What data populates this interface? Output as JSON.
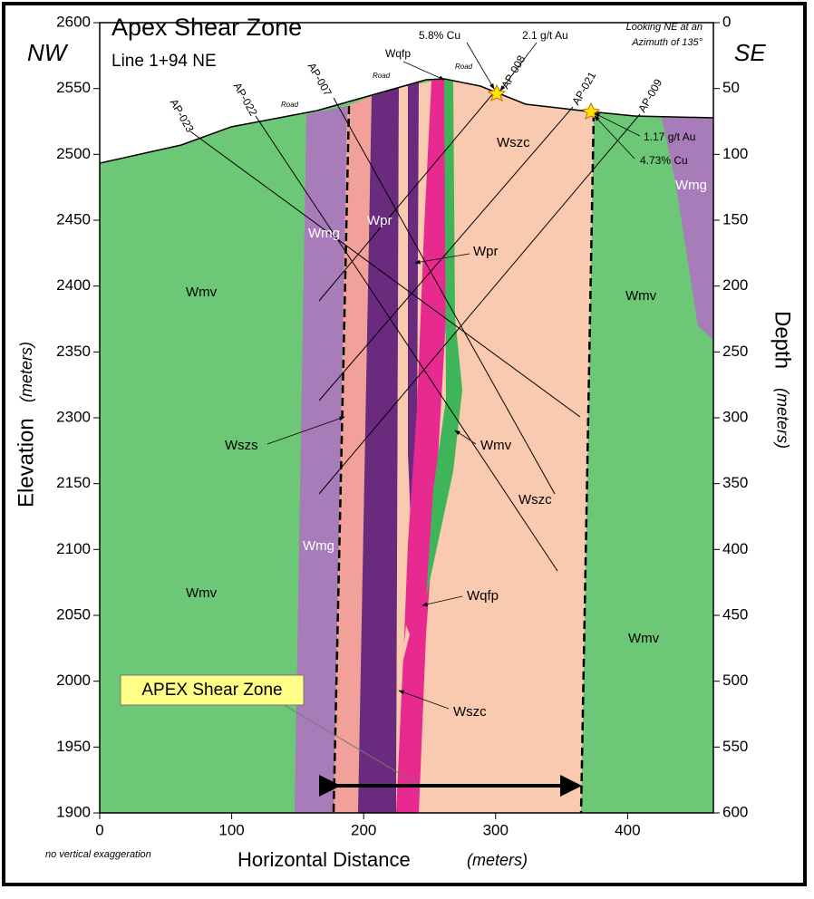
{
  "title": "Apex Shear Zone",
  "subtitle": "Line 1+94 NE",
  "left_direction": "NW",
  "right_direction": "SE",
  "view_note": [
    "Looking NE at an",
    "Azimuth of 135°"
  ],
  "x_axis": {
    "label": "Horizontal Distance",
    "unit": "(meters)",
    "lim": [
      0,
      465
    ],
    "ticks": [
      0,
      100,
      200,
      300,
      400
    ]
  },
  "elevation_axis": {
    "label": "Elevation",
    "unit": "(meters)",
    "tick_labels": [
      2600,
      2550,
      2500,
      2450,
      2400,
      2350,
      2300,
      2150,
      2100,
      2050,
      2000,
      1950,
      1900
    ]
  },
  "depth_axis": {
    "label": "Depth",
    "unit": "(meters)",
    "lim": [
      0,
      600
    ],
    "ticks": [
      0,
      50,
      100,
      150,
      200,
      250,
      300,
      350,
      400,
      450,
      500,
      550,
      600
    ]
  },
  "unit_labels": [
    "Wmv",
    "Wmg",
    "Wpr",
    "Wszc",
    "Wmg",
    "Wmv",
    "Wszs",
    "Wmg",
    "Wmv",
    "Wmv",
    "Wpr",
    "Wmv",
    "Wszc",
    "Wqfp",
    "Wszc",
    "Wqfp"
  ],
  "assays": [
    "5.8% Cu",
    "2.1 g/t Au",
    "1.17 g/t Au",
    "4.73% Cu"
  ],
  "roads": [
    "Road",
    "Road",
    "Road"
  ],
  "drill_holes": [
    "AP-023",
    "AP-022",
    "AP-007",
    "AP-008",
    "AP-021",
    "AP-009"
  ],
  "callout": "APEX Shear Zone",
  "note": "no vertical exaggeration"
}
